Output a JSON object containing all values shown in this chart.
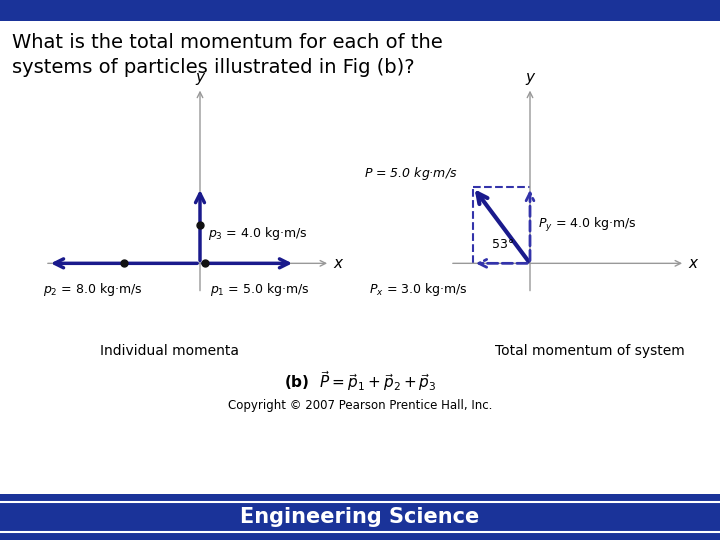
{
  "title_line1": "What is the total momentum for each of the",
  "title_line2": "systems of particles illustrated in Fig (b)?",
  "bg_color": "#ffffff",
  "arrow_color": "#1a1a8c",
  "axis_color": "#999999",
  "dot_color": "#111111",
  "dashed_color": "#3333aa",
  "footer_bg": "#1a3399",
  "footer_text": "Engineering Science",
  "left_caption": "Individual momenta",
  "right_caption": "Total momentum of system",
  "formula": "(b)  $\\vec{P} = \\vec{p}_1 + \\vec{p}_2 + \\vec{p}_3$",
  "copyright": "Copyright © 2007 Pearson Prentice Hall, Inc.",
  "p1_label": "$p_1$ = 5.0 kg·m/s",
  "p2_label": "$p_2$ = 8.0 kg·m/s",
  "p3_label": "$p_3$ = 4.0 kg·m/s",
  "P_label": "$P$ = 5.0 kg·m/s",
  "Px_label": "$P_x$ = 3.0 kg·m/s",
  "Py_label": "$P_y$ = 4.0 kg·m/s",
  "angle_label": "53°"
}
